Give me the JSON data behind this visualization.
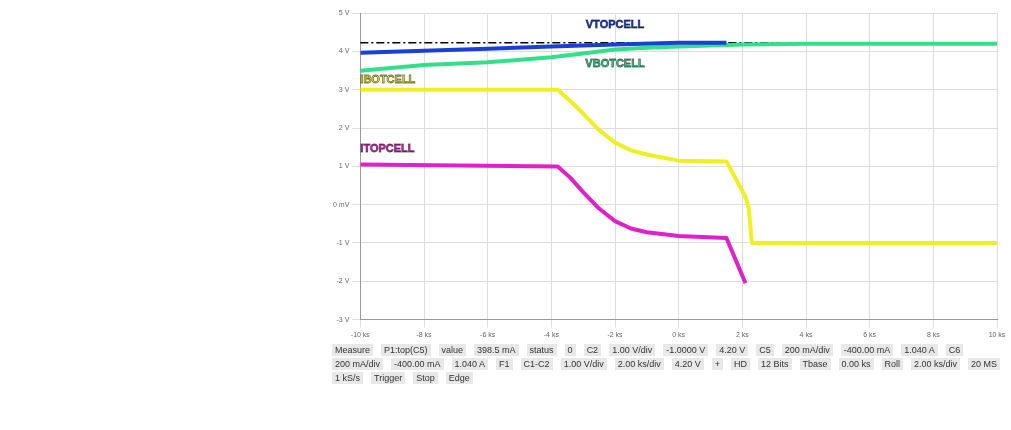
{
  "chart_data": {
    "type": "line",
    "xlim": [
      -10,
      10
    ],
    "ylim": [
      -3,
      5
    ],
    "xticks": [
      {
        "value": -10,
        "label": "-10 ks"
      },
      {
        "value": -8,
        "label": "-8 ks"
      },
      {
        "value": -6,
        "label": "-6 ks"
      },
      {
        "value": -4,
        "label": "-4 ks"
      },
      {
        "value": -2,
        "label": "-2 ks"
      },
      {
        "value": 0,
        "label": "0 ks"
      },
      {
        "value": 2,
        "label": "2 ks"
      },
      {
        "value": 4,
        "label": "4 ks"
      },
      {
        "value": 6,
        "label": "6 ks"
      },
      {
        "value": 8,
        "label": "8 ks"
      },
      {
        "value": 10,
        "label": "10 ks"
      }
    ],
    "yticks": [
      {
        "value": -3,
        "label": "-3 V"
      },
      {
        "value": -2,
        "label": "-2 V"
      },
      {
        "value": -1,
        "label": "-1 V"
      },
      {
        "value": 0,
        "label": "0 mV"
      },
      {
        "value": 1,
        "label": "1 V"
      },
      {
        "value": 2,
        "label": "2 V"
      },
      {
        "value": 3,
        "label": "3 V"
      },
      {
        "value": 4,
        "label": "4 V"
      },
      {
        "value": 5,
        "label": "5 V"
      }
    ],
    "grid": true,
    "legend": false,
    "marker": "none",
    "line_style": "solid",
    "series": [
      {
        "name": "VTOPCELL",
        "color": "#1a3fd6",
        "x": [
          -10,
          -8,
          -6,
          -4,
          -2,
          0,
          1.5
        ],
        "values": [
          3.97,
          4.02,
          4.07,
          4.13,
          4.18,
          4.23,
          4.23
        ]
      },
      {
        "name": "VBOTCELL",
        "color": "#33e08a",
        "x": [
          -10,
          -8,
          -6,
          -4,
          -3,
          -2,
          -1,
          0,
          2,
          4,
          10
        ],
        "values": [
          3.5,
          3.65,
          3.72,
          3.85,
          3.95,
          4.05,
          4.1,
          4.13,
          4.18,
          4.2,
          4.2
        ]
      },
      {
        "name": "IBOTCELL",
        "color": "#f0f020",
        "x": [
          -10,
          -3.8,
          -3.4,
          -3,
          -2.5,
          -2,
          -1.5,
          -1,
          0,
          1.5,
          2.1,
          2.2,
          2.3,
          10
        ],
        "values": [
          3.0,
          3.0,
          2.7,
          2.38,
          1.95,
          1.62,
          1.42,
          1.31,
          1.15,
          1.13,
          0.2,
          -0.08,
          -1.0,
          -1.0
        ]
      },
      {
        "name": "ITOPCELL",
        "color": "#e020c8",
        "x": [
          -10,
          -3.8,
          -3.4,
          -3,
          -2.5,
          -2,
          -1.5,
          -1,
          0,
          1.5,
          2.1
        ],
        "values": [
          1.05,
          1.0,
          0.7,
          0.33,
          -0.1,
          -0.43,
          -0.62,
          -0.72,
          -0.82,
          -0.87,
          -2.05
        ]
      }
    ],
    "ref_lines": [
      {
        "axis": "y",
        "value": 4.23,
        "color": "#000000",
        "line_style": "dashdot"
      }
    ],
    "annotations": [
      "Measure",
      "P1:top(C5)",
      "value",
      "398.5 mA",
      "status",
      "0",
      "C2",
      "1.00 V/div",
      "-1.0000 V",
      "4.20 V",
      "C5",
      "200 mA/div",
      "-400.00 mA",
      "1.040 A",
      "C6",
      "200 mA/div",
      "-400.00 mA",
      "1.040 A",
      "F1",
      "C1-C2",
      "1.00 V/div",
      "2.00 ks/div",
      "4.20 V",
      "+",
      "HD",
      "12 Bits",
      "Tbase",
      "0.00 ks",
      "Roll",
      "2.00 ks/div",
      "20 MS",
      "1 kS/s",
      "Trigger",
      "Stop",
      "Edge"
    ]
  }
}
